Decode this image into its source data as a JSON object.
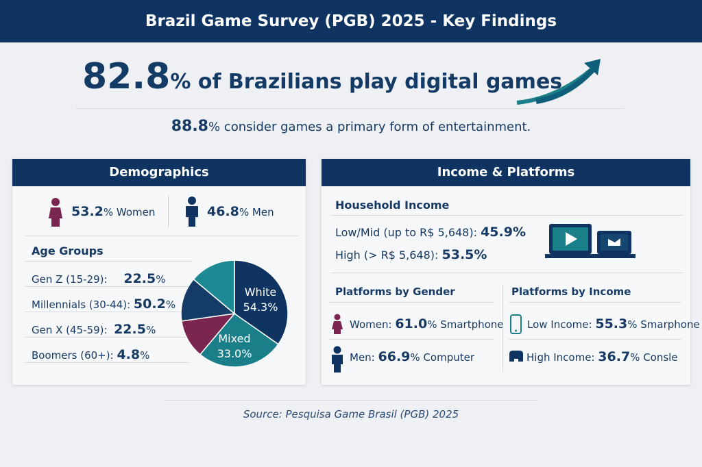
{
  "header": {
    "title": "Brazil Game Survey (PGB) 2025 - Key Findings"
  },
  "hero": {
    "value": "82.8",
    "unit": "%",
    "text": "of Brazilians play digital games",
    "icon": "trend-arrow-icon"
  },
  "subline": {
    "value": "88.8",
    "text": "% consider games a primary form of entertainment."
  },
  "demographics": {
    "title": "Demographics",
    "women": {
      "value": "53.2",
      "label": "% Women"
    },
    "men": {
      "value": "46.8",
      "label": "% Men"
    },
    "age_title": "Age Groups",
    "age_groups": [
      {
        "label": "Gen Z (15-29):",
        "value": "22.5",
        "unit": "%"
      },
      {
        "label": "Millennials (30-44):",
        "value": "50.2",
        "unit": "%"
      },
      {
        "label": "Gen X (45-59):",
        "value": "22.5",
        "unit": "%"
      },
      {
        "label": "Boomers (60+):",
        "value": "4.8",
        "unit": "%"
      }
    ]
  },
  "chart_data": {
    "type": "pie",
    "slices": [
      {
        "label": "White",
        "value": 54.3,
        "display": "54.3%",
        "color": "#0f3461"
      },
      {
        "label": "Mixed",
        "value": 33.0,
        "display": "33.0%",
        "color": "#1b7f8a"
      },
      {
        "label": "",
        "value": null,
        "color": "#7a2650"
      },
      {
        "label": "",
        "value": null,
        "color": "#143c66"
      },
      {
        "label": "",
        "value": null,
        "color": "#1d8a93"
      }
    ]
  },
  "income": {
    "title": "Income & Platforms",
    "household_title": "Household Income",
    "low": {
      "label": "Low/Mid (up to R$ 5,648):",
      "value": "45.9%"
    },
    "high": {
      "label": "High (> R$ 5,648):",
      "value": "53.5%"
    },
    "gender_title": "Platforms by Gender",
    "women": {
      "label": "Women:",
      "value": "61.0",
      "rest": "% Smartphone"
    },
    "men": {
      "label": "Men:",
      "value": "66.9",
      "rest": "% Computer"
    },
    "income_title": "Platforms by Income",
    "low_income": {
      "label": "Low Income:",
      "value": "55.3",
      "rest": "% Smarphone"
    },
    "high_income": {
      "label": "High Income:",
      "value": "36.7",
      "rest": "% Consle"
    }
  },
  "source": "Source: Pesquisa Game Brasil (PGB) 2025",
  "colors": {
    "navy": "#0f3461",
    "teal": "#1b7f8a",
    "maroon": "#7a2650"
  }
}
